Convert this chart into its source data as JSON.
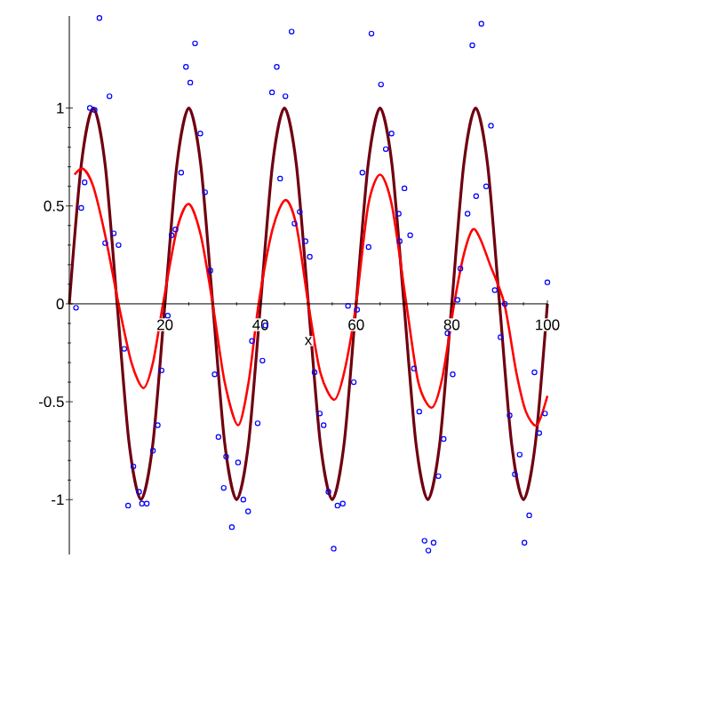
{
  "chart_data": {
    "type": "line",
    "xlabel": "x",
    "xlim": [
      0,
      100
    ],
    "ylim": [
      -1.28,
      1.47
    ],
    "xticks": [
      20,
      40,
      60,
      80,
      100
    ],
    "yticks": [
      -1,
      -0.5,
      0,
      0.5,
      1
    ],
    "series": [
      {
        "type": "scatter",
        "color": "#0000ff",
        "marker": "circle",
        "x": [
          1.4,
          2.5,
          3.2,
          4.3,
          5.3,
          6.3,
          7.5,
          8.4,
          9.3,
          10.3,
          11.5,
          12.3,
          13.4,
          14.6,
          15.2,
          16.2,
          17.5,
          18.5,
          19.3,
          20.6,
          21.4,
          22.2,
          23.4,
          24.4,
          25.3,
          26.3,
          27.4,
          28.4,
          29.5,
          30.4,
          31.2,
          32.3,
          32.8,
          34.0,
          35.3,
          36.4,
          37.4,
          38.2,
          39.4,
          40.4,
          41.0,
          42.4,
          43.4,
          44.1,
          45.2,
          46.5,
          47.1,
          48.2,
          49.4,
          50.3,
          51.3,
          52.4,
          53.2,
          54.2,
          55.3,
          56.1,
          57.2,
          58.3,
          59.5,
          60.2,
          61.3,
          62.6,
          63.2,
          65.2,
          66.2,
          67.4,
          68.9,
          69.1,
          70.1,
          71.3,
          72.1,
          73.2,
          74.3,
          75.1,
          76.2,
          77.2,
          78.3,
          79.1,
          80.2,
          81.2,
          81.8,
          83.3,
          84.3,
          85.1,
          86.2,
          87.2,
          88.2,
          89.0,
          90.2,
          91.1,
          92.1,
          93.2,
          94.2,
          95.2,
          96.2,
          97.3,
          98.3,
          99.5,
          100
        ],
        "values": [
          -0.02,
          0.49,
          0.62,
          1.0,
          0.99,
          1.46,
          0.31,
          1.06,
          0.36,
          0.3,
          -0.23,
          -1.03,
          -0.83,
          -0.96,
          -1.02,
          -1.02,
          -0.75,
          -0.62,
          -0.34,
          -0.06,
          0.35,
          0.38,
          0.67,
          1.21,
          1.13,
          1.33,
          0.87,
          0.57,
          0.17,
          -0.36,
          -0.68,
          -0.94,
          -0.78,
          -1.14,
          -0.81,
          -1.0,
          -1.06,
          -0.19,
          -0.61,
          -0.29,
          -0.11,
          1.08,
          1.21,
          0.64,
          1.06,
          1.39,
          0.41,
          0.47,
          0.32,
          0.24,
          -0.35,
          -0.56,
          -0.62,
          -0.96,
          -1.25,
          -1.03,
          -1.02,
          -0.01,
          -0.4,
          -0.03,
          0.67,
          0.29,
          1.38,
          1.12,
          0.79,
          0.87,
          0.46,
          0.32,
          0.59,
          0.35,
          -0.33,
          -0.55,
          -1.21,
          -1.26,
          -1.22,
          -0.88,
          -0.69,
          -0.15,
          -0.36,
          0.02,
          0.18,
          0.46,
          1.32,
          0.55,
          1.43,
          0.6,
          0.91,
          0.07,
          -0.17,
          0.0,
          -0.57,
          -0.87,
          -0.77,
          -1.22,
          -1.08,
          -0.35,
          -0.66,
          -0.56,
          0.11
        ]
      },
      {
        "type": "line",
        "color": "#700010",
        "x": [
          0,
          2.5,
          5,
          7.5,
          10,
          12.5,
          15,
          17.5,
          20,
          22.5,
          25,
          27.5,
          30,
          32.5,
          35,
          37.5,
          40,
          42.5,
          45,
          47.5,
          50,
          52.5,
          55,
          57.5,
          60,
          62.5,
          65,
          67.5,
          70,
          72.5,
          75,
          77.5,
          80,
          82.5,
          85,
          87.5,
          90,
          92.5,
          95,
          97.5,
          100
        ],
        "values": [
          0,
          0.71,
          1,
          0.71,
          0,
          -0.71,
          -1,
          -0.71,
          0,
          0.71,
          1,
          0.71,
          0,
          -0.71,
          -1,
          -0.71,
          0,
          0.71,
          1,
          0.71,
          0,
          -0.71,
          -1,
          -0.71,
          0,
          0.71,
          1,
          0.71,
          0,
          -0.71,
          -1,
          -0.71,
          0,
          0.71,
          1,
          0.71,
          0,
          -0.71,
          -1,
          -0.71,
          0
        ]
      },
      {
        "type": "line",
        "color": "#ff0000",
        "x": [
          1.1,
          2.9,
          5,
          7.5,
          10.3,
          13,
          15.5,
          17.5,
          19.6,
          22.5,
          25,
          27.5,
          30,
          32.5,
          35.3,
          37.5,
          39.6,
          42.5,
          45.2,
          47.5,
          50,
          52.5,
          55.4,
          57.5,
          60,
          62.5,
          65,
          67.5,
          70.5,
          73,
          75.8,
          78,
          80.5,
          82.5,
          84.4,
          86,
          88,
          91,
          93.5,
          95.5,
          97.8,
          100
        ],
        "values": [
          0.66,
          0.69,
          0.6,
          0.35,
          0,
          -0.3,
          -0.43,
          -0.3,
          0,
          0.38,
          0.51,
          0.35,
          0,
          -0.4,
          -0.62,
          -0.4,
          0,
          0.38,
          0.53,
          0.4,
          0,
          -0.35,
          -0.49,
          -0.35,
          0,
          0.5,
          0.66,
          0.5,
          0,
          -0.4,
          -0.53,
          -0.38,
          0,
          0.25,
          0.38,
          0.33,
          0.2,
          0,
          -0.35,
          -0.55,
          -0.62,
          -0.47
        ]
      }
    ]
  }
}
